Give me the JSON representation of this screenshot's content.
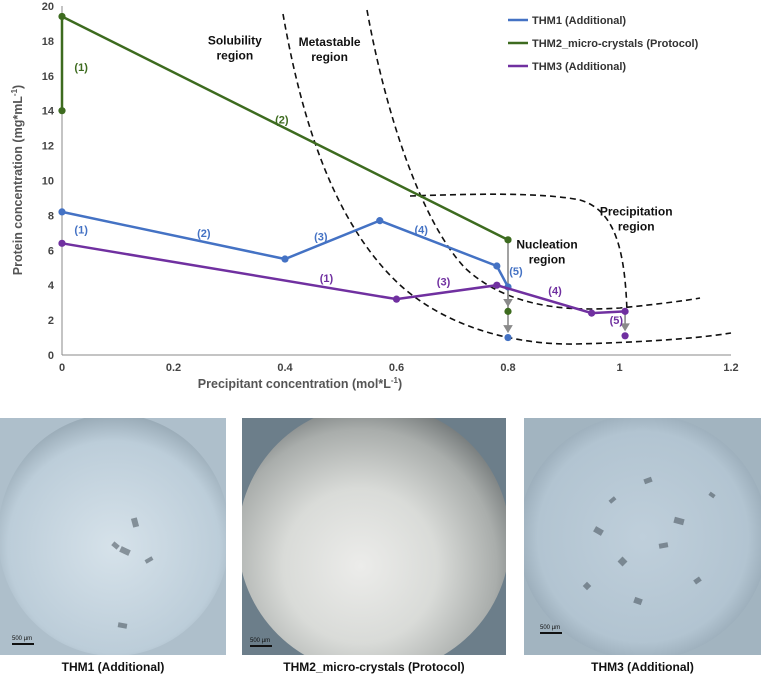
{
  "chart_data": {
    "type": "line",
    "xlabel": "Precipitant concentration (mol*L-1)",
    "ylabel": "Protein concentration (mg*mL-1)",
    "xlim": [
      0,
      1.2
    ],
    "ylim": [
      0,
      20
    ],
    "xticks": [
      "0",
      "0.2",
      "0.4",
      "0.6",
      "0.8",
      "1",
      "1.2"
    ],
    "yticks": [
      "0",
      "2",
      "4",
      "6",
      "8",
      "10",
      "12",
      "14",
      "16",
      "18",
      "20"
    ],
    "legend_position": "top-right",
    "series": [
      {
        "name": "THM1 (Additional)",
        "color": "#4472c4",
        "x": [
          0,
          0.4,
          0.57,
          0.78,
          0.8
        ],
        "y": [
          8.2,
          5.5,
          7.7,
          5.1,
          3.9
        ]
      },
      {
        "name": "THM2_micro-crystals (Protocol)",
        "color": "#3d6b1f",
        "x": [
          0,
          0,
          0.8
        ],
        "y": [
          14,
          19.4,
          6.6
        ]
      },
      {
        "name": "THM3 (Additional)",
        "color": "#7030a0",
        "x": [
          0,
          0.6,
          0.78,
          0.95,
          1.01
        ],
        "y": [
          6.4,
          3.2,
          4.0,
          2.4,
          2.5
        ]
      }
    ],
    "drop_points": [
      {
        "series": 0,
        "x": 0.8,
        "y": 1.0
      },
      {
        "series": 1,
        "x": 0.8,
        "y": 2.5
      },
      {
        "series": 2,
        "x": 1.01,
        "y": 1.1
      }
    ],
    "drop_arrows": [
      {
        "x": 0.8,
        "y_from": 3.9,
        "y_to": 1.0
      },
      {
        "x": 0.8,
        "y_from": 6.6,
        "y_to": 2.5
      },
      {
        "x": 1.01,
        "y_from": 2.5,
        "y_to": 1.1
      }
    ],
    "step_labels": [
      {
        "text": "(1)",
        "series": 1,
        "x": 0.02,
        "y": 16.5
      },
      {
        "text": "(2)",
        "series": 1,
        "x": 0.38,
        "y": 13.5
      },
      {
        "text": "(1)",
        "series": 0,
        "x": 0.02,
        "y": 7.2
      },
      {
        "text": "(2)",
        "series": 0,
        "x": 0.24,
        "y": 7.0
      },
      {
        "text": "(3)",
        "series": 0,
        "x": 0.45,
        "y": 6.8
      },
      {
        "text": "(4)",
        "series": 0,
        "x": 0.63,
        "y": 7.2
      },
      {
        "text": "(5)",
        "series": 0,
        "x": 0.8,
        "y": 4.8
      },
      {
        "text": "(1)",
        "series": 2,
        "x": 0.46,
        "y": 4.4
      },
      {
        "text": "(3)",
        "series": 2,
        "x": 0.67,
        "y": 4.2
      },
      {
        "text": "(4)",
        "series": 2,
        "x": 0.87,
        "y": 3.7
      },
      {
        "text": "(5)",
        "series": 2,
        "x": 0.98,
        "y": 2.0
      }
    ],
    "regions": [
      {
        "lines": [
          "Solubility",
          "region"
        ],
        "x": 0.31,
        "y": 17.8
      },
      {
        "lines": [
          "Metastable",
          "region"
        ],
        "x": 0.48,
        "y": 17.7
      },
      {
        "lines": [
          "Nucleation",
          "region"
        ],
        "x": 0.87,
        "y": 6.1
      },
      {
        "lines": [
          "Precipitation",
          "region"
        ],
        "x": 1.03,
        "y": 8.0
      }
    ]
  },
  "images": [
    {
      "caption": "THM1  (Additional)",
      "scale": "500 µm"
    },
    {
      "caption": "THM2_micro-crystals (Protocol)",
      "scale": "500 µm"
    },
    {
      "caption": "THM3  (Additional)",
      "scale": "500 µm"
    }
  ]
}
